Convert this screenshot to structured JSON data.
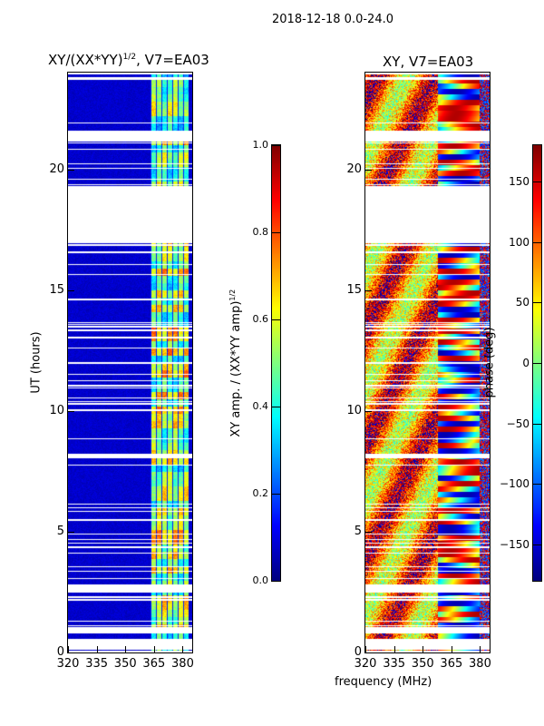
{
  "suptitle": "2018-12-18 0.0-24.0",
  "xlabel": "frequency (MHz)",
  "chart_data": [
    {
      "type": "heatmap",
      "title": "XY/(XX*YY)^1/2, V7=EA03",
      "title_main": "XY/(XX*YY)",
      "title_sup": "1/2",
      "title_rest": ", V7=EA03",
      "xlabel": "frequency (MHz)",
      "ylabel": "UT (hours)",
      "xlim": [
        320,
        385
      ],
      "ylim": [
        0,
        24
      ],
      "xticks": [
        "320",
        "335",
        "350",
        "365",
        "380"
      ],
      "xtick_values": [
        320,
        335,
        350,
        365,
        380
      ],
      "yticks": [
        "0",
        "5",
        "10",
        "15",
        "20"
      ],
      "ytick_values": [
        0,
        5,
        10,
        15,
        20
      ],
      "colorbar": {
        "label_main": "XY amp. / (XX*YY amp)",
        "label_sup": "1/2",
        "range": [
          0,
          1
        ],
        "ticks": [
          "0.0",
          "0.2",
          "0.4",
          "0.6",
          "0.8",
          "1.0"
        ],
        "tick_values": [
          0,
          0.2,
          0.4,
          0.6,
          0.8,
          1.0
        ],
        "colormap": "jet"
      },
      "flagged_ut_ranges": [
        [
          0.15,
          0.55
        ],
        [
          0.85,
          1.05
        ],
        [
          2.5,
          2.7
        ],
        [
          17.0,
          18.0
        ],
        [
          18.0,
          19.3
        ],
        [
          21.2,
          21.6
        ]
      ],
      "active_freq_range_mhz": [
        363,
        383
      ],
      "background_value": 0.05
    },
    {
      "type": "heatmap",
      "title": "XY, V7=EA03",
      "xlabel": "frequency (MHz)",
      "ylabel": "",
      "xlim": [
        320,
        385
      ],
      "ylim": [
        0,
        24
      ],
      "xticks": [
        "320",
        "335",
        "350",
        "365",
        "380"
      ],
      "xtick_values": [
        320,
        335,
        350,
        365,
        380
      ],
      "yticks": [
        "0",
        "5",
        "10",
        "15",
        "20"
      ],
      "ytick_values": [
        0,
        5,
        10,
        15,
        20
      ],
      "colorbar": {
        "label": "phase (deg)",
        "range": [
          -180,
          180
        ],
        "ticks": [
          "150",
          "100",
          "50",
          "0",
          "−50",
          "−100",
          "−150"
        ],
        "tick_values": [
          150,
          100,
          50,
          0,
          -50,
          -100,
          -150
        ],
        "colormap": "jet"
      },
      "flagged_ut_ranges": [
        [
          0.15,
          0.55
        ],
        [
          0.85,
          1.05
        ],
        [
          2.5,
          2.7
        ],
        [
          17.0,
          18.0
        ],
        [
          18.0,
          19.3
        ],
        [
          21.2,
          21.6
        ]
      ]
    }
  ]
}
